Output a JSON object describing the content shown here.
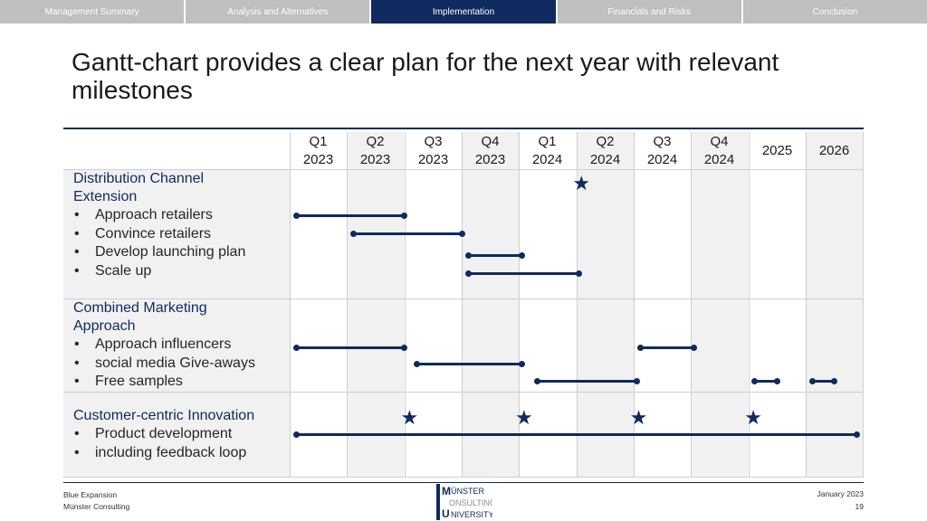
{
  "nav": {
    "tabs": [
      {
        "label": "Management Summary",
        "active": false
      },
      {
        "label": "Analysis and Alternatives",
        "active": false
      },
      {
        "label": "Implementation",
        "active": true
      },
      {
        "label": "Financials and Risks",
        "active": false
      },
      {
        "label": "Conclusion",
        "active": false
      }
    ]
  },
  "title": "Gantt-chart provides a clear plan for the next year with relevant milestones",
  "periods": [
    {
      "line1": "Q1",
      "line2": "2023"
    },
    {
      "line1": "Q2",
      "line2": "2023"
    },
    {
      "line1": "Q3",
      "line2": "2023"
    },
    {
      "line1": "Q4",
      "line2": "2023"
    },
    {
      "line1": "Q1",
      "line2": "2024"
    },
    {
      "line1": "Q2",
      "line2": "2024"
    },
    {
      "line1": "Q3",
      "line2": "2024"
    },
    {
      "line1": "Q4",
      "line2": "2024"
    },
    {
      "line1": "2025",
      "line2": ""
    },
    {
      "line1": "2026",
      "line2": ""
    }
  ],
  "workstreams": [
    {
      "title_line1": "Distribution Channel",
      "title_line2": "Extension",
      "tasks": [
        "Approach retailers",
        "Convince retailers",
        "Develop launching plan",
        "Scale up"
      ]
    },
    {
      "title_line1": "Combined Marketing",
      "title_line2": "Approach",
      "tasks": [
        "Approach influencers",
        "social media Give-aways",
        "Free samples"
      ]
    },
    {
      "title_line1": "Customer-centric Innovation",
      "title_line2": "",
      "tasks": [
        "Product development",
        "including feedback loop"
      ]
    }
  ],
  "gantt": {
    "bars": [
      {
        "task": "Approach retailers",
        "start": 0.0,
        "end": 1.9
      },
      {
        "task": "Convince retailers",
        "start": 1.0,
        "end": 2.9
      },
      {
        "task": "Develop launching plan",
        "start": 3.0,
        "end": 3.95
      },
      {
        "task": "Scale up",
        "start": 3.0,
        "end": 4.95
      },
      {
        "task": "Approach influencers",
        "start": 0.0,
        "end": 1.9
      },
      {
        "task": "Approach influencers",
        "start": 6.0,
        "end": 6.95
      },
      {
        "task": "social media Give-aways",
        "start": 2.1,
        "end": 3.95
      },
      {
        "task": "Free samples",
        "start": 4.2,
        "end": 5.95
      },
      {
        "task": "Free samples",
        "start": 8.0,
        "end": 8.4
      },
      {
        "task": "Free samples",
        "start": 9.0,
        "end": 9.4
      },
      {
        "task": "Product development",
        "start": 0.0,
        "end": 9.8
      }
    ],
    "milestones": [
      {
        "workstream": "Distribution Channel Extension",
        "at": 4.98
      },
      {
        "workstream": "Customer-centric Innovation",
        "at": 1.98
      },
      {
        "workstream": "Customer-centric Innovation",
        "at": 3.98
      },
      {
        "workstream": "Customer-centric Innovation",
        "at": 5.98
      },
      {
        "workstream": "Customer-centric Innovation",
        "at": 7.98
      }
    ]
  },
  "footer": {
    "project": "Blue Expansion",
    "company": "Münster Consulting",
    "date": "January 2023",
    "page": "19",
    "logo_text": "MÜNSTER CONSULTING UNIVERSITY"
  },
  "colors": {
    "accent": "#0f2a5e",
    "shade": "#f1f1f1",
    "grid": "#cfcfcf"
  }
}
